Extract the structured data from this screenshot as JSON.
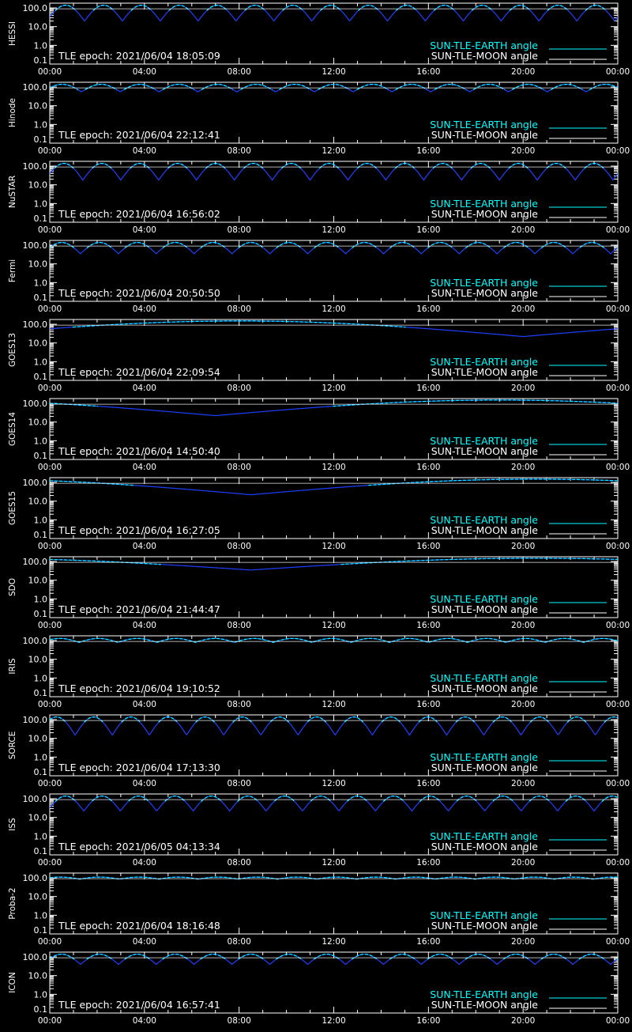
{
  "colors": {
    "background": "#000000",
    "axes": "#ffffff",
    "earth_angle": "#00ffff",
    "moon_angle": "#ffffff",
    "dip": "#1f3fff"
  },
  "legend": {
    "earth_label": "SUN-TLE-EARTH angle",
    "moon_label": "SUN-TLE-MOON angle"
  },
  "chart_data": [
    {
      "type": "line",
      "ylabel": "HESSI",
      "epoch_text": "TLE epoch: 2021/06/04 18:05:09",
      "x_ticks": [
        "00:00",
        "04:00",
        "08:00",
        "12:00",
        "16:00",
        "20:00",
        "00:00"
      ],
      "y_ticks": [
        "100.0",
        "10.0",
        "1.0",
        "0.1"
      ],
      "y_scale": "log",
      "ylim": [
        0.1,
        180
      ],
      "xlim_hours": [
        0,
        24
      ],
      "series": [
        {
          "name": "SUN-TLE-EARTH angle",
          "pattern": "orbital",
          "period_hours": 1.6,
          "phase_hours": 0.13,
          "min": 20,
          "max": 140
        },
        {
          "name": "SUN-TLE-MOON angle",
          "pattern": "flat",
          "value": 90
        }
      ]
    },
    {
      "type": "line",
      "ylabel": "Hinode",
      "epoch_text": "TLE epoch: 2021/06/04 22:12:41",
      "x_ticks": [
        "00:00",
        "04:00",
        "08:00",
        "12:00",
        "16:00",
        "20:00",
        "00:00"
      ],
      "y_ticks": [
        "100.0",
        "10.0",
        "1.0",
        "0.1"
      ],
      "y_scale": "log",
      "ylim": [
        0.1,
        180
      ],
      "xlim_hours": [
        0,
        24
      ],
      "series": [
        {
          "name": "SUN-TLE-EARTH angle",
          "pattern": "orbital",
          "period_hours": 1.64,
          "phase_hours": 0.3,
          "min": 55,
          "max": 140
        },
        {
          "name": "SUN-TLE-MOON angle",
          "pattern": "flat",
          "value": 90
        }
      ]
    },
    {
      "type": "line",
      "ylabel": "NuSTAR",
      "epoch_text": "TLE epoch: 2021/06/04 16:56:02",
      "x_ticks": [
        "00:00",
        "04:00",
        "08:00",
        "12:00",
        "16:00",
        "20:00",
        "00:00"
      ],
      "y_ticks": [
        "100.0",
        "10.0",
        "1.0",
        "0.1"
      ],
      "y_scale": "log",
      "ylim": [
        0.1,
        180
      ],
      "xlim_hours": [
        0,
        24
      ],
      "series": [
        {
          "name": "SUN-TLE-EARTH angle",
          "pattern": "orbital",
          "period_hours": 1.6,
          "phase_hours": 0.2,
          "min": 18,
          "max": 140
        },
        {
          "name": "SUN-TLE-MOON angle",
          "pattern": "flat",
          "value": 90
        }
      ]
    },
    {
      "type": "line",
      "ylabel": "Fermi",
      "epoch_text": "TLE epoch: 2021/06/04 20:50:50",
      "x_ticks": [
        "00:00",
        "04:00",
        "08:00",
        "12:00",
        "16:00",
        "20:00",
        "00:00"
      ],
      "y_ticks": [
        "100.0",
        "10.0",
        "1.0",
        "0.1"
      ],
      "y_scale": "log",
      "ylim": [
        0.1,
        180
      ],
      "xlim_hours": [
        0,
        24
      ],
      "series": [
        {
          "name": "SUN-TLE-EARTH angle",
          "pattern": "orbital",
          "period_hours": 1.6,
          "phase_hours": 0.3,
          "min": 35,
          "max": 140
        },
        {
          "name": "SUN-TLE-MOON angle",
          "pattern": "flat",
          "value": 90
        }
      ]
    },
    {
      "type": "line",
      "ylabel": "GOES13",
      "epoch_text": "TLE epoch: 2021/06/04 22:09:54",
      "x_ticks": [
        "00:00",
        "04:00",
        "08:00",
        "12:00",
        "16:00",
        "20:00",
        "00:00"
      ],
      "y_ticks": [
        "100.0",
        "10.0",
        "1.0",
        "0.1"
      ],
      "y_scale": "log",
      "ylim": [
        0.1,
        180
      ],
      "xlim_hours": [
        0,
        24
      ],
      "series": [
        {
          "name": "SUN-TLE-EARTH angle",
          "pattern": "slow",
          "min_hour": 20,
          "min": 22,
          "max": 150
        },
        {
          "name": "SUN-TLE-MOON angle",
          "pattern": "flat",
          "value": 90
        }
      ]
    },
    {
      "type": "line",
      "ylabel": "GOES14",
      "epoch_text": "TLE epoch: 2021/06/04 14:50:40",
      "x_ticks": [
        "00:00",
        "04:00",
        "08:00",
        "12:00",
        "16:00",
        "20:00",
        "00:00"
      ],
      "y_ticks": [
        "100.0",
        "10.0",
        "1.0",
        "0.1"
      ],
      "y_scale": "log",
      "ylim": [
        0.1,
        180
      ],
      "xlim_hours": [
        0,
        24
      ],
      "series": [
        {
          "name": "SUN-TLE-EARTH angle",
          "pattern": "slow",
          "min_hour": 7,
          "min": 22,
          "max": 150
        },
        {
          "name": "SUN-TLE-MOON angle",
          "pattern": "flat",
          "value": 90
        }
      ]
    },
    {
      "type": "line",
      "ylabel": "GOES15",
      "epoch_text": "TLE epoch: 2021/06/04 16:27:05",
      "x_ticks": [
        "00:00",
        "04:00",
        "08:00",
        "12:00",
        "16:00",
        "20:00",
        "00:00"
      ],
      "y_ticks": [
        "100.0",
        "10.0",
        "1.0",
        "0.1"
      ],
      "y_scale": "log",
      "ylim": [
        0.1,
        180
      ],
      "xlim_hours": [
        0,
        24
      ],
      "series": [
        {
          "name": "SUN-TLE-EARTH angle",
          "pattern": "slow",
          "min_hour": 8.5,
          "min": 22,
          "max": 150
        },
        {
          "name": "SUN-TLE-MOON angle",
          "pattern": "flat",
          "value": 90
        }
      ]
    },
    {
      "type": "line",
      "ylabel": "SDO",
      "epoch_text": "TLE epoch: 2021/06/04 21:44:47",
      "x_ticks": [
        "00:00",
        "04:00",
        "08:00",
        "12:00",
        "16:00",
        "20:00",
        "00:00"
      ],
      "y_ticks": [
        "100.0",
        "10.0",
        "1.0",
        "0.1"
      ],
      "y_scale": "log",
      "ylim": [
        0.1,
        180
      ],
      "xlim_hours": [
        0,
        24
      ],
      "series": [
        {
          "name": "SUN-TLE-EARTH angle",
          "pattern": "slow",
          "min_hour": 8.5,
          "min": 35,
          "max": 150
        },
        {
          "name": "SUN-TLE-MOON angle",
          "pattern": "flat",
          "value": 90
        }
      ]
    },
    {
      "type": "line",
      "ylabel": "IRIS",
      "epoch_text": "TLE epoch: 2021/06/04 19:10:52",
      "x_ticks": [
        "00:00",
        "04:00",
        "08:00",
        "12:00",
        "16:00",
        "20:00",
        "00:00"
      ],
      "y_ticks": [
        "100.0",
        "10.0",
        "1.0",
        "0.1"
      ],
      "y_scale": "log",
      "ylim": [
        0.1,
        180
      ],
      "xlim_hours": [
        0,
        24
      ],
      "series": [
        {
          "name": "SUN-TLE-EARTH angle",
          "pattern": "orbital",
          "period_hours": 1.64,
          "phase_hours": 0.4,
          "min": 80,
          "max": 130
        },
        {
          "name": "SUN-TLE-MOON angle",
          "pattern": "flat",
          "value": 90
        }
      ]
    },
    {
      "type": "line",
      "ylabel": "SORCE",
      "epoch_text": "TLE epoch: 2021/06/04 17:13:30",
      "x_ticks": [
        "00:00",
        "04:00",
        "08:00",
        "12:00",
        "16:00",
        "20:00",
        "00:00"
      ],
      "y_ticks": [
        "100.0",
        "10.0",
        "1.0",
        "0.1"
      ],
      "y_scale": "log",
      "ylim": [
        0.1,
        180
      ],
      "xlim_hours": [
        0,
        24
      ],
      "series": [
        {
          "name": "SUN-TLE-EARTH angle",
          "pattern": "orbital",
          "period_hours": 1.57,
          "phase_hours": 0.5,
          "min": 15,
          "max": 140
        },
        {
          "name": "SUN-TLE-MOON angle",
          "pattern": "flat",
          "value": 90
        }
      ]
    },
    {
      "type": "line",
      "ylabel": "ISS",
      "epoch_text": "TLE epoch: 2021/06/05 04:13:34",
      "x_ticks": [
        "00:00",
        "04:00",
        "08:00",
        "12:00",
        "16:00",
        "20:00",
        "00:00"
      ],
      "y_ticks": [
        "100.0",
        "10.0",
        "1.0",
        "0.1"
      ],
      "y_scale": "log",
      "ylim": [
        0.1,
        180
      ],
      "xlim_hours": [
        0,
        24
      ],
      "series": [
        {
          "name": "SUN-TLE-EARTH angle",
          "pattern": "orbital",
          "period_hours": 1.54,
          "phase_hours": 0.1,
          "min": 22,
          "max": 140
        },
        {
          "name": "SUN-TLE-MOON angle",
          "pattern": "flat",
          "value": 90
        }
      ]
    },
    {
      "type": "line",
      "ylabel": "Proba-2",
      "epoch_text": "TLE epoch: 2021/06/04 18:16:48",
      "x_ticks": [
        "00:00",
        "04:00",
        "08:00",
        "12:00",
        "16:00",
        "20:00",
        "00:00"
      ],
      "y_ticks": [
        "100.0",
        "10.0",
        "1.0",
        "0.1"
      ],
      "y_scale": "log",
      "ylim": [
        0.1,
        180
      ],
      "xlim_hours": [
        0,
        24
      ],
      "series": [
        {
          "name": "SUN-TLE-EARTH angle",
          "pattern": "orbital",
          "period_hours": 1.67,
          "phase_hours": 0.4,
          "min": 85,
          "max": 110
        },
        {
          "name": "SUN-TLE-MOON angle",
          "pattern": "flat",
          "value": 90
        }
      ]
    },
    {
      "type": "line",
      "ylabel": "ICON",
      "epoch_text": "TLE epoch: 2021/06/04 16:57:41",
      "x_ticks": [
        "00:00",
        "04:00",
        "08:00",
        "12:00",
        "16:00",
        "20:00",
        "00:00"
      ],
      "y_ticks": [
        "100.0",
        "10.0",
        "1.0",
        "0.1"
      ],
      "y_scale": "log",
      "ylim": [
        0.1,
        180
      ],
      "xlim_hours": [
        0,
        24
      ],
      "series": [
        {
          "name": "SUN-TLE-EARTH angle",
          "pattern": "orbital",
          "period_hours": 1.6,
          "phase_hours": 0.3,
          "min": 40,
          "max": 140
        },
        {
          "name": "SUN-TLE-MOON angle",
          "pattern": "flat",
          "value": 90
        }
      ]
    }
  ]
}
